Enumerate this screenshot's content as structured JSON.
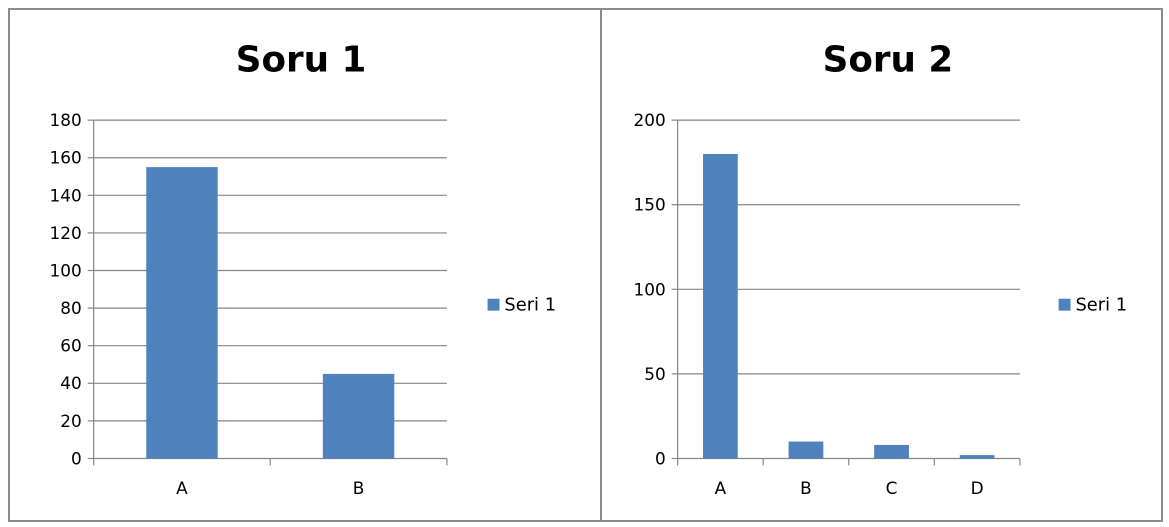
{
  "colors": {
    "bar": "#4f81bd",
    "gridline": "#868686",
    "axis": "#868686",
    "border": "#8c8c8c"
  },
  "chart_data": [
    {
      "type": "bar",
      "title": "Soru 1",
      "categories": [
        "A",
        "B"
      ],
      "series": [
        {
          "name": "Seri 1",
          "values": [
            155,
            45
          ]
        }
      ],
      "xlabel": "",
      "ylabel": "",
      "ylim": [
        0,
        180
      ],
      "yticks": [
        0,
        20,
        40,
        60,
        80,
        100,
        120,
        140,
        160,
        180
      ],
      "grid": true,
      "legend": "right"
    },
    {
      "type": "bar",
      "title": "Soru 2",
      "categories": [
        "A",
        "B",
        "C",
        "D"
      ],
      "series": [
        {
          "name": "Seri 1",
          "values": [
            180,
            10,
            8,
            2
          ]
        }
      ],
      "xlabel": "",
      "ylabel": "",
      "ylim": [
        0,
        200
      ],
      "yticks": [
        0,
        50,
        100,
        150,
        200
      ],
      "grid": true,
      "legend": "right"
    }
  ]
}
